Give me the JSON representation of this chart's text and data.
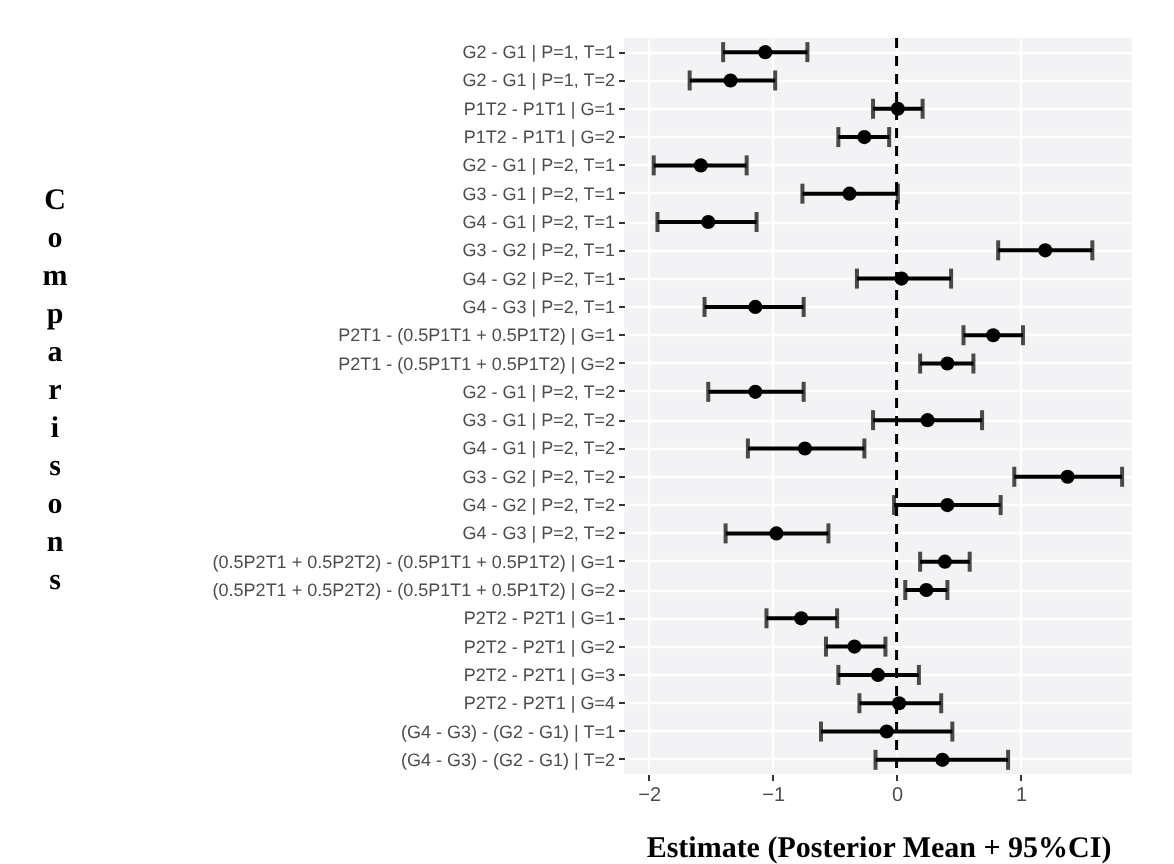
{
  "chart_data": {
    "type": "scatter",
    "orientation": "horizontal",
    "xlabel": "Estimate (Posterior Mean + 95%CI)",
    "ylabel": "Comparisons",
    "categories": [
      "G2 - G1 | P=1, T=1",
      "G2 - G1 | P=1, T=2",
      "P1T2 - P1T1 | G=1",
      "P1T2 - P1T1 | G=2",
      "G2 - G1 | P=2, T=1",
      "G3 - G1 | P=2, T=1",
      "G4 - G1 | P=2, T=1",
      "G3 - G2 | P=2, T=1",
      "G4 - G2 | P=2, T=1",
      "G4 - G3 | P=2, T=1",
      "P2T1 - (0.5P1T1 + 0.5P1T2) | G=1",
      "P2T1 - (0.5P1T1 + 0.5P1T2) | G=2",
      "G2 - G1 | P=2, T=2",
      "G3 - G1 | P=2, T=2",
      "G4 - G1 | P=2, T=2",
      "G3 - G2 | P=2, T=2",
      "G4 - G2 | P=2, T=2",
      "G4 - G3 | P=2, T=2",
      "(0.5P2T1 + 0.5P2T2) - (0.5P1T1 + 0.5P1T2) | G=1",
      "(0.5P2T1 + 0.5P2T2) - (0.5P1T1 + 0.5P1T2) | G=2",
      "P2T2 - P2T1 | G=1",
      "P2T2 - P2T1 | G=2",
      "P2T2 - P2T1 | G=3",
      "P2T2 - P2T1 | G=4",
      "(G4 - G3) - (G2 - G1) | T=1",
      "(G4 - G3) - (G2 - G1) | T=2"
    ],
    "series": [
      {
        "color": "#000000",
        "values": [
          -1.06,
          -1.34,
          0.01,
          -0.26,
          -1.58,
          -0.38,
          -1.52,
          1.2,
          0.04,
          -1.14,
          0.78,
          0.41,
          -1.14,
          0.25,
          -0.74,
          1.38,
          0.41,
          -0.97,
          0.39,
          0.24,
          -0.77,
          -0.34,
          -0.15,
          0.02,
          -0.08,
          0.37
        ],
        "errors": [
          [
            -1.4,
            -0.72
          ],
          [
            -1.67,
            -0.98
          ],
          [
            -0.19,
            0.21
          ],
          [
            -0.47,
            -0.06
          ],
          [
            -1.96,
            -1.21
          ],
          [
            -0.76,
            0.01
          ],
          [
            -1.93,
            -1.13
          ],
          [
            0.82,
            1.58
          ],
          [
            -0.32,
            0.44
          ],
          [
            -1.55,
            -0.75
          ],
          [
            0.54,
            1.02
          ],
          [
            0.19,
            0.62
          ],
          [
            -1.52,
            -0.75
          ],
          [
            -0.19,
            0.69
          ],
          [
            -1.2,
            -0.26
          ],
          [
            0.95,
            1.82
          ],
          [
            -0.02,
            0.84
          ],
          [
            -1.38,
            -0.55
          ],
          [
            0.19,
            0.59
          ],
          [
            0.07,
            0.41
          ],
          [
            -1.05,
            -0.48
          ],
          [
            -0.57,
            -0.09
          ],
          [
            -0.47,
            0.18
          ],
          [
            -0.3,
            0.36
          ],
          [
            -0.61,
            0.45
          ],
          [
            -0.17,
            0.9
          ]
        ]
      }
    ],
    "xlim": [
      -2.2,
      1.9
    ],
    "xticks": [
      -2,
      -1,
      0,
      1
    ],
    "marker": "circle",
    "grid": true,
    "ref_lines": [
      {
        "axis": "x",
        "value": 0,
        "line_style": "dashed",
        "color": "#000000"
      }
    ]
  }
}
